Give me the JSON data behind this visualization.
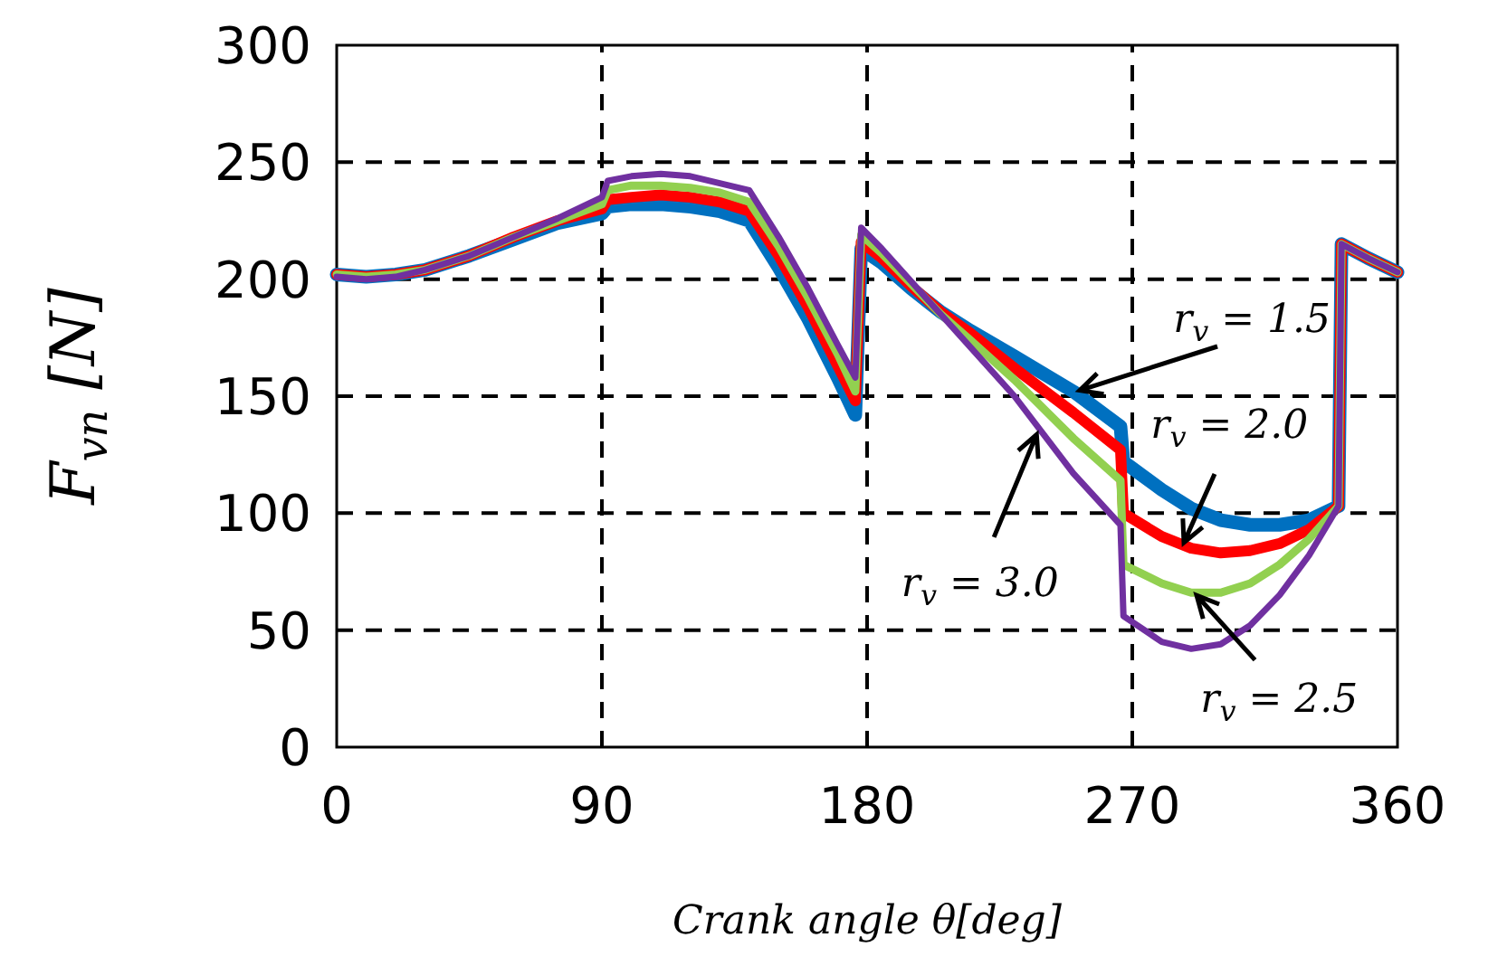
{
  "chart_data": {
    "type": "line",
    "xlabel": "Crank angle θ[deg]",
    "ylabel": "F$_{vn}$ [N]",
    "xlim": [
      0,
      360
    ],
    "xticks": [
      0,
      90,
      180,
      270,
      360
    ],
    "ylim": [
      0,
      300
    ],
    "yticks": [
      0,
      50,
      100,
      150,
      200,
      250,
      300
    ],
    "grid": true,
    "marker": "none",
    "line_style": "solid",
    "x": [
      0,
      10,
      20,
      30,
      45,
      60,
      75,
      90,
      92,
      100,
      110,
      120,
      130,
      140,
      150,
      160,
      170,
      176,
      178,
      185,
      195,
      205,
      215,
      230,
      250,
      266,
      267,
      280,
      290,
      300,
      310,
      320,
      330,
      340,
      341,
      350,
      360
    ],
    "series": [
      {
        "color": "#0070c0",
        "values": [
          202,
          201,
          202,
          204,
          210,
          217,
          224,
          228,
          231,
          232,
          232,
          231,
          229,
          225,
          205,
          183,
          158,
          142,
          213,
          207,
          196,
          186,
          178,
          167,
          152,
          137,
          122,
          110,
          102,
          97,
          95,
          95,
          97,
          103,
          215,
          209,
          203
        ]
      },
      {
        "color": "#ff0000",
        "values": [
          202,
          201,
          202,
          204,
          210,
          218,
          225,
          230,
          234,
          235,
          236,
          235,
          233,
          229,
          210,
          188,
          163,
          148,
          216,
          209,
          197,
          186,
          177,
          162,
          143,
          127,
          100,
          90,
          85,
          83,
          84,
          87,
          93,
          103,
          215,
          209,
          203
        ]
      },
      {
        "color": "#92d050",
        "values": [
          202,
          201,
          202,
          204,
          210,
          218,
          225,
          232,
          238,
          240,
          240,
          239,
          237,
          233,
          214,
          192,
          168,
          152,
          219,
          211,
          198,
          185,
          174,
          157,
          132,
          114,
          78,
          70,
          66,
          66,
          70,
          78,
          89,
          103,
          215,
          209,
          203
        ]
      },
      {
        "color": "#7030a0",
        "values": [
          201,
          200,
          201,
          204,
          210,
          218,
          226,
          235,
          242,
          244,
          245,
          244,
          241,
          238,
          218,
          196,
          172,
          158,
          222,
          213,
          199,
          185,
          171,
          150,
          117,
          95,
          56,
          45,
          42,
          44,
          52,
          65,
          82,
          103,
          215,
          209,
          203
        ]
      }
    ],
    "annotations": [
      {
        "text": "r$_{v}$ = 1.5",
        "x": 251,
        "y": 152
      },
      {
        "text": "r$_{v}$ = 2.0",
        "x": 287,
        "y": 86
      },
      {
        "text": "r$_{v}$ = 2.5",
        "x": 291,
        "y": 66
      },
      {
        "text": "r$_{v}$ = 3.0",
        "x": 238,
        "y": 135
      }
    ]
  }
}
